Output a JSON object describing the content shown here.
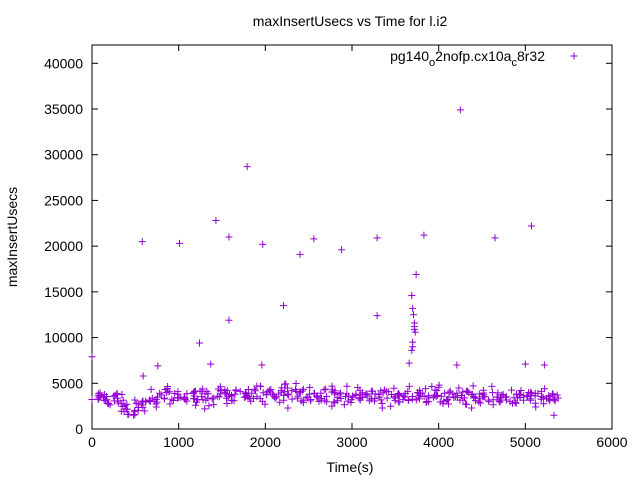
{
  "chart_data": {
    "type": "scatter",
    "title": "maxInsertUsecs vs Time for l.i2",
    "xlabel": "Time(s)",
    "ylabel": "maxInsertUsecs",
    "xlim": [
      0,
      6000
    ],
    "ylim": [
      0,
      42000
    ],
    "x_ticks": [
      0,
      1000,
      2000,
      3000,
      4000,
      5000,
      6000
    ],
    "y_ticks": [
      0,
      5000,
      10000,
      15000,
      20000,
      25000,
      30000,
      35000,
      40000
    ],
    "x_tick_labels": [
      "0",
      "1000",
      "2000",
      "3000",
      "4000",
      "5000",
      "6000"
    ],
    "y_tick_labels": [
      "0",
      "5000",
      "10000",
      "15000",
      "20000",
      "25000",
      "30000",
      "35000",
      "40000"
    ],
    "grid": false,
    "legend": {
      "position": "top-right",
      "label_parts": [
        "pg140",
        "o",
        "2nofp.cx10a",
        "c",
        "8r32"
      ]
    },
    "marker": "plus",
    "color": "#9400d3",
    "series": [
      {
        "name": "pg140_o2nofp.cx10a_c8r32",
        "points": [
          [
            0,
            7900
          ],
          [
            580,
            20500
          ],
          [
            1010,
            20300
          ],
          [
            1240,
            9400
          ],
          [
            1370,
            7100
          ],
          [
            1430,
            22800
          ],
          [
            1580,
            21000
          ],
          [
            1580,
            11900
          ],
          [
            1790,
            28700
          ],
          [
            1970,
            20200
          ],
          [
            1960,
            7000
          ],
          [
            2210,
            13500
          ],
          [
            2400,
            19100
          ],
          [
            2560,
            20800
          ],
          [
            2880,
            19600
          ],
          [
            3290,
            20900
          ],
          [
            3290,
            12400
          ],
          [
            3690,
            14600
          ],
          [
            3700,
            13200
          ],
          [
            3710,
            12500
          ],
          [
            3720,
            11600
          ],
          [
            3720,
            11200
          ],
          [
            3720,
            10900
          ],
          [
            3730,
            10600
          ],
          [
            3700,
            9500
          ],
          [
            3700,
            9000
          ],
          [
            3690,
            8600
          ],
          [
            3740,
            16900
          ],
          [
            3830,
            21200
          ],
          [
            4210,
            7000
          ],
          [
            4250,
            34900
          ],
          [
            4650,
            20900
          ],
          [
            5000,
            7100
          ],
          [
            5070,
            22200
          ],
          [
            5220,
            7000
          ],
          [
            760,
            6900
          ],
          [
            590,
            5800
          ],
          [
            3660,
            7200
          ],
          [
            480,
            1500
          ],
          [
            5330,
            1500
          ],
          [
            370,
            1900
          ],
          [
            1300,
            2200
          ],
          [
            2260,
            2300
          ],
          [
            3350,
            2300
          ],
          [
            4380,
            2300
          ],
          [
            5120,
            2400
          ]
        ],
        "dense_band": [
          [
            0,
            3300
          ],
          [
            100,
            3600
          ],
          [
            200,
            3400
          ],
          [
            300,
            3500
          ],
          [
            350,
            2600
          ],
          [
            400,
            2100
          ],
          [
            450,
            1900
          ],
          [
            500,
            2000
          ],
          [
            550,
            2500
          ],
          [
            600,
            3100
          ],
          [
            700,
            3500
          ],
          [
            800,
            3400
          ],
          [
            900,
            3600
          ],
          [
            1000,
            3500
          ],
          [
            1100,
            3500
          ],
          [
            1200,
            3600
          ],
          [
            1300,
            3700
          ],
          [
            1400,
            3600
          ],
          [
            1500,
            3700
          ],
          [
            1600,
            3700
          ],
          [
            1700,
            3600
          ],
          [
            1800,
            3700
          ],
          [
            1900,
            3800
          ],
          [
            2000,
            3800
          ],
          [
            2100,
            3800
          ],
          [
            2200,
            3900
          ],
          [
            2300,
            3900
          ],
          [
            2400,
            3900
          ],
          [
            2500,
            3800
          ],
          [
            2600,
            3800
          ],
          [
            2700,
            3700
          ],
          [
            2800,
            3600
          ],
          [
            2900,
            3600
          ],
          [
            3000,
            3500
          ],
          [
            3100,
            3600
          ],
          [
            3200,
            3500
          ],
          [
            3300,
            3400
          ],
          [
            3400,
            3500
          ],
          [
            3500,
            3600
          ],
          [
            3600,
            3500
          ],
          [
            3700,
            3700
          ],
          [
            3800,
            3600
          ],
          [
            3900,
            3600
          ],
          [
            4000,
            3700
          ],
          [
            4100,
            3600
          ],
          [
            4200,
            3500
          ],
          [
            4300,
            3600
          ],
          [
            4400,
            3700
          ],
          [
            4500,
            3600
          ],
          [
            4600,
            3500
          ],
          [
            4700,
            3500
          ],
          [
            4800,
            3400
          ],
          [
            4900,
            3400
          ],
          [
            5000,
            3500
          ],
          [
            5100,
            3400
          ],
          [
            5200,
            3300
          ],
          [
            5300,
            3300
          ],
          [
            5380,
            3400
          ]
        ]
      }
    ]
  }
}
